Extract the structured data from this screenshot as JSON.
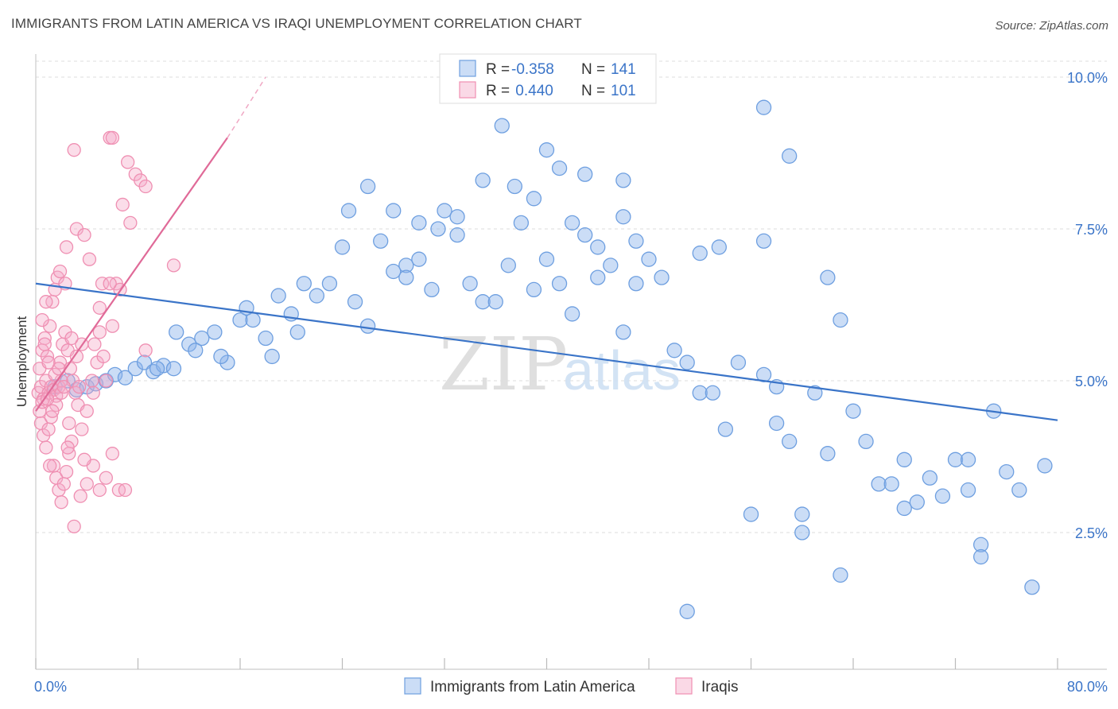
{
  "title": "IMMIGRANTS FROM LATIN AMERICA VS IRAQI UNEMPLOYMENT CORRELATION CHART",
  "source": "Source: ZipAtlas.com",
  "watermark": {
    "zip": "ZIP",
    "atlas": "atlas"
  },
  "colors": {
    "blue": "#3a74c8",
    "blue_fill": "rgba(140,180,235,0.45)",
    "blue_stroke": "#6e9fe0",
    "pink": "#e06a98",
    "pink_fill": "rgba(245,170,200,0.40)",
    "pink_stroke": "#ef8fb2",
    "grid": "#dddddd"
  },
  "legend_top": [
    {
      "r_label": "R = ",
      "r_value": "-0.358",
      "n_label": "N = ",
      "n_value": "141",
      "color": "blue"
    },
    {
      "r_label": "R = ",
      "r_value": " 0.440",
      "n_label": "N = ",
      "n_value": "101",
      "color": "pink"
    }
  ],
  "legend_bottom": [
    {
      "label": "Immigrants from Latin America",
      "color": "blue"
    },
    {
      "label": "Iraqis",
      "color": "pink"
    }
  ],
  "chart_data": {
    "type": "scatter",
    "xlabel": "",
    "ylabel": "Unemployment",
    "xlim": [
      0,
      80
    ],
    "ylim": [
      0.5,
      10.5
    ],
    "x_tick_labels": [
      {
        "value": 0,
        "label": "0.0%"
      },
      {
        "value": 80,
        "label": "80.0%"
      }
    ],
    "y_ticks": [
      {
        "value": 2.5,
        "label": "2.5%"
      },
      {
        "value": 5.0,
        "label": "5.0%"
      },
      {
        "value": 7.5,
        "label": "7.5%"
      },
      {
        "value": 10.0,
        "label": "10.0%"
      }
    ],
    "x_minor_ticks": [
      0,
      8,
      16,
      24,
      32,
      40,
      48,
      56,
      64,
      72,
      80
    ],
    "grid": true,
    "legend_position": "top-center",
    "series": [
      {
        "name": "Immigrants from Latin America",
        "color": "blue",
        "trend": {
          "x": [
            0,
            80
          ],
          "y": [
            6.6,
            4.35
          ]
        },
        "points": [
          [
            1.5,
            4.9
          ],
          [
            2.5,
            5.0
          ],
          [
            3.2,
            4.85
          ],
          [
            4.0,
            4.9
          ],
          [
            4.7,
            4.95
          ],
          [
            5.5,
            5.0
          ],
          [
            6.2,
            5.1
          ],
          [
            7.0,
            5.05
          ],
          [
            7.8,
            5.2
          ],
          [
            8.5,
            5.3
          ],
          [
            9.2,
            5.15
          ],
          [
            10.0,
            5.25
          ],
          [
            10.8,
            5.2
          ],
          [
            9.5,
            5.2
          ],
          [
            11.0,
            5.8
          ],
          [
            12.0,
            5.6
          ],
          [
            13.0,
            5.7
          ],
          [
            14.0,
            5.8
          ],
          [
            15.0,
            5.3
          ],
          [
            16.0,
            6.0
          ],
          [
            17.0,
            6.0
          ],
          [
            18.0,
            5.7
          ],
          [
            19.0,
            6.4
          ],
          [
            20.0,
            6.1
          ],
          [
            21.0,
            6.6
          ],
          [
            22.0,
            6.4
          ],
          [
            23.0,
            6.6
          ],
          [
            24.0,
            7.2
          ],
          [
            25.0,
            6.3
          ],
          [
            26.0,
            5.9
          ],
          [
            27.0,
            7.3
          ],
          [
            28.0,
            6.8
          ],
          [
            29.0,
            6.9
          ],
          [
            30.0,
            7.0
          ],
          [
            31.0,
            6.5
          ],
          [
            32.0,
            7.8
          ],
          [
            33.0,
            7.4
          ],
          [
            34.0,
            6.6
          ],
          [
            35.0,
            6.3
          ],
          [
            36.0,
            6.3
          ],
          [
            37.0,
            6.9
          ],
          [
            38.0,
            7.6
          ],
          [
            39.0,
            6.5
          ],
          [
            40.0,
            7.0
          ],
          [
            41.0,
            6.6
          ],
          [
            42.0,
            6.1
          ],
          [
            43.0,
            7.4
          ],
          [
            44.0,
            7.2
          ],
          [
            45.0,
            6.9
          ],
          [
            46.0,
            5.8
          ],
          [
            47.0,
            6.6
          ],
          [
            48.0,
            7.0
          ],
          [
            49.0,
            6.7
          ],
          [
            50.0,
            5.5
          ],
          [
            51.0,
            5.3
          ],
          [
            52.0,
            4.8
          ],
          [
            53.0,
            4.8
          ],
          [
            54.0,
            4.2
          ],
          [
            55.0,
            5.3
          ],
          [
            56.0,
            2.8
          ],
          [
            57.0,
            5.1
          ],
          [
            58.0,
            4.9
          ],
          [
            59.0,
            4.0
          ],
          [
            60.0,
            2.8
          ],
          [
            61.0,
            4.8
          ],
          [
            62.0,
            3.8
          ],
          [
            63.0,
            6.0
          ],
          [
            64.0,
            4.5
          ],
          [
            65.0,
            4.0
          ],
          [
            66.0,
            3.3
          ],
          [
            67.0,
            3.3
          ],
          [
            68.0,
            3.7
          ],
          [
            69.0,
            3.0
          ],
          [
            70.0,
            3.4
          ],
          [
            71.0,
            3.1
          ],
          [
            72.0,
            3.7
          ],
          [
            73.0,
            3.2
          ],
          [
            74.0,
            2.3
          ],
          [
            75.0,
            4.5
          ],
          [
            76.0,
            3.5
          ],
          [
            77.0,
            3.2
          ],
          [
            78.0,
            1.6
          ],
          [
            79.0,
            3.6
          ],
          [
            36.5,
            9.2
          ],
          [
            40.0,
            8.8
          ],
          [
            41.0,
            8.5
          ],
          [
            43.0,
            8.4
          ],
          [
            46.0,
            8.3
          ],
          [
            57.0,
            9.5
          ],
          [
            59.0,
            8.7
          ],
          [
            37.5,
            8.2
          ],
          [
            35.0,
            8.3
          ],
          [
            26.0,
            8.2
          ],
          [
            28.0,
            7.8
          ],
          [
            42.0,
            7.6
          ],
          [
            30.0,
            7.6
          ],
          [
            46.0,
            7.7
          ],
          [
            52.0,
            7.1
          ],
          [
            57.0,
            7.3
          ],
          [
            62.0,
            6.7
          ],
          [
            51.0,
            1.2
          ],
          [
            63.0,
            1.8
          ],
          [
            74.0,
            2.1
          ],
          [
            39.0,
            8.0
          ],
          [
            33.0,
            7.7
          ],
          [
            16.5,
            6.2
          ],
          [
            18.5,
            5.4
          ],
          [
            20.5,
            5.8
          ],
          [
            14.5,
            5.4
          ],
          [
            12.5,
            5.5
          ],
          [
            24.5,
            7.8
          ],
          [
            29.0,
            6.7
          ],
          [
            31.5,
            7.5
          ],
          [
            44.0,
            6.7
          ],
          [
            47.0,
            7.3
          ],
          [
            53.5,
            7.2
          ],
          [
            58.0,
            4.3
          ],
          [
            60.0,
            2.5
          ],
          [
            68.0,
            2.9
          ],
          [
            73.0,
            3.7
          ]
        ]
      },
      {
        "name": "Iraqis",
        "color": "pink",
        "trend": {
          "x": [
            0,
            15
          ],
          "y": [
            4.5,
            9.0
          ],
          "dashed_to": {
            "x": 18,
            "y": 10.0
          }
        },
        "points": [
          [
            0.2,
            4.8
          ],
          [
            0.4,
            4.9
          ],
          [
            0.6,
            4.7
          ],
          [
            0.8,
            5.0
          ],
          [
            1.0,
            4.8
          ],
          [
            1.2,
            4.9
          ],
          [
            1.4,
            4.85
          ],
          [
            1.6,
            4.75
          ],
          [
            1.8,
            4.9
          ],
          [
            2.0,
            4.8
          ],
          [
            0.3,
            5.2
          ],
          [
            0.5,
            5.5
          ],
          [
            0.7,
            5.7
          ],
          [
            0.9,
            5.4
          ],
          [
            1.1,
            5.9
          ],
          [
            1.3,
            6.3
          ],
          [
            1.5,
            6.5
          ],
          [
            1.7,
            6.7
          ],
          [
            1.9,
            5.3
          ],
          [
            2.1,
            5.6
          ],
          [
            2.3,
            5.8
          ],
          [
            2.5,
            5.5
          ],
          [
            2.7,
            5.2
          ],
          [
            2.9,
            5.0
          ],
          [
            3.1,
            4.8
          ],
          [
            3.3,
            4.6
          ],
          [
            0.4,
            4.3
          ],
          [
            0.6,
            4.1
          ],
          [
            0.8,
            3.9
          ],
          [
            1.0,
            4.2
          ],
          [
            1.2,
            4.4
          ],
          [
            1.4,
            3.6
          ],
          [
            1.6,
            3.4
          ],
          [
            1.8,
            3.2
          ],
          [
            2.0,
            3.0
          ],
          [
            2.2,
            3.3
          ],
          [
            2.4,
            3.5
          ],
          [
            2.6,
            3.8
          ],
          [
            2.8,
            4.0
          ],
          [
            3.0,
            2.6
          ],
          [
            3.5,
            3.1
          ],
          [
            4.0,
            3.3
          ],
          [
            4.5,
            3.6
          ],
          [
            5.0,
            3.2
          ],
          [
            5.5,
            3.4
          ],
          [
            6.0,
            3.8
          ],
          [
            6.5,
            3.2
          ],
          [
            3.2,
            7.5
          ],
          [
            3.0,
            8.8
          ],
          [
            3.8,
            7.4
          ],
          [
            2.4,
            7.2
          ],
          [
            4.2,
            7.0
          ],
          [
            4.6,
            5.6
          ],
          [
            5.2,
            6.6
          ],
          [
            5.0,
            6.2
          ],
          [
            5.0,
            5.8
          ],
          [
            3.6,
            5.6
          ],
          [
            4.8,
            5.3
          ],
          [
            4.4,
            5.0
          ],
          [
            3.4,
            4.9
          ],
          [
            2.6,
            4.3
          ],
          [
            1.6,
            4.6
          ],
          [
            0.3,
            4.5
          ],
          [
            0.5,
            4.65
          ],
          [
            2.0,
            5.0
          ],
          [
            1.5,
            5.1
          ],
          [
            1.0,
            5.3
          ],
          [
            0.7,
            5.6
          ],
          [
            4.0,
            4.5
          ],
          [
            4.5,
            4.8
          ],
          [
            5.5,
            5.0
          ],
          [
            5.3,
            5.4
          ],
          [
            6.0,
            5.9
          ],
          [
            6.3,
            6.6
          ],
          [
            6.6,
            6.5
          ],
          [
            5.8,
            6.6
          ],
          [
            6.8,
            7.9
          ],
          [
            7.4,
            7.6
          ],
          [
            7.8,
            8.4
          ],
          [
            8.2,
            8.3
          ],
          [
            8.6,
            8.2
          ],
          [
            5.8,
            9.0
          ],
          [
            6.0,
            9.0
          ],
          [
            7.2,
            8.6
          ],
          [
            10.8,
            6.9
          ],
          [
            8.6,
            5.5
          ],
          [
            7.0,
            3.2
          ],
          [
            2.2,
            4.9
          ],
          [
            1.8,
            5.2
          ],
          [
            2.8,
            5.7
          ],
          [
            3.2,
            5.4
          ],
          [
            3.6,
            4.2
          ],
          [
            0.9,
            4.7
          ],
          [
            1.3,
            4.5
          ],
          [
            2.5,
            3.9
          ],
          [
            3.8,
            3.7
          ],
          [
            1.1,
            3.6
          ],
          [
            0.5,
            6.0
          ],
          [
            0.8,
            6.3
          ],
          [
            1.9,
            6.8
          ],
          [
            2.3,
            6.6
          ]
        ]
      }
    ]
  }
}
